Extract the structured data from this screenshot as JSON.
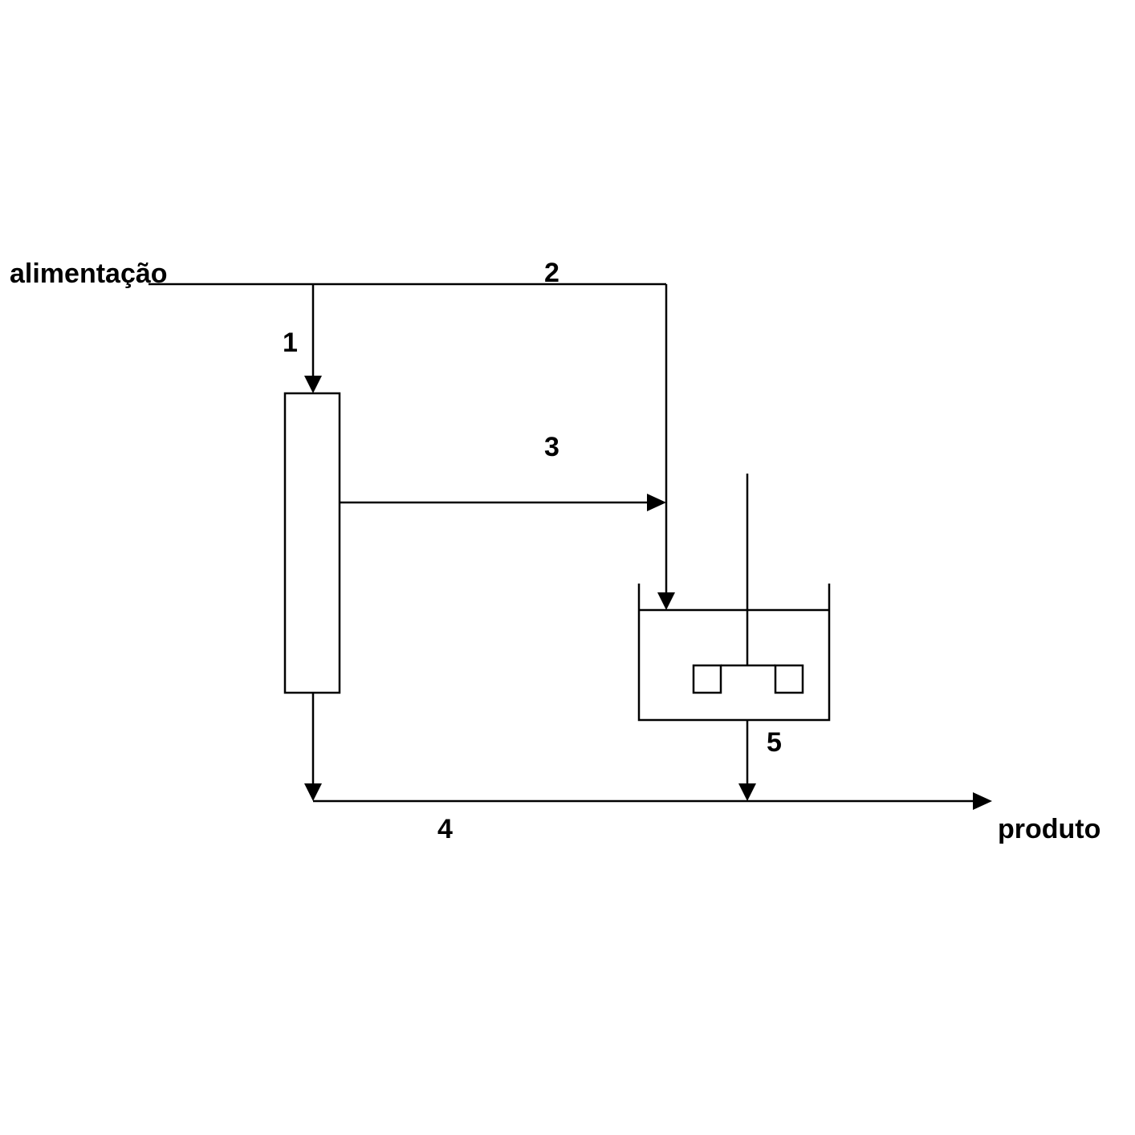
{
  "diagram": {
    "input_label": "alimentação",
    "output_label": "produto",
    "streams": [
      {
        "id": "1",
        "label": "1"
      },
      {
        "id": "2",
        "label": "2"
      },
      {
        "id": "3",
        "label": "3"
      },
      {
        "id": "4",
        "label": "4"
      },
      {
        "id": "5",
        "label": "5"
      }
    ],
    "units": [
      {
        "name": "column"
      },
      {
        "name": "stirred-tank-reactor"
      }
    ],
    "colors": {
      "stroke": "#000000",
      "background": "#ffffff"
    }
  }
}
